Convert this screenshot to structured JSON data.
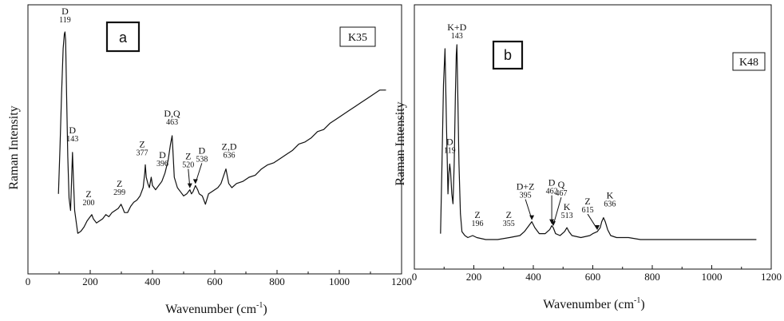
{
  "chart_data": [
    {
      "type": "line",
      "panel_label": "a",
      "sample": "K35",
      "xlabel": "Wavenumber (cm",
      "xlabel_sup": "-1",
      "xlabel_close": ")",
      "ylabel": "Raman Intensity",
      "xlim": [
        0,
        1200
      ],
      "ylim": [
        0,
        100
      ],
      "xticks": [
        "0",
        "200",
        "400",
        "600",
        "800",
        "1000",
        "1200"
      ],
      "grid": false,
      "series": [
        {
          "x": [
            98,
            103,
            108,
            113,
            117,
            119,
            121,
            124,
            128,
            132,
            137,
            140,
            143,
            146,
            150,
            160,
            170,
            180,
            190,
            200,
            205,
            210,
            220,
            230,
            240,
            250,
            260,
            270,
            280,
            290,
            299,
            305,
            310,
            320,
            330,
            340,
            350,
            360,
            370,
            375,
            377,
            380,
            385,
            390,
            396,
            400,
            410,
            420,
            430,
            440,
            450,
            458,
            463,
            466,
            470,
            480,
            490,
            500,
            510,
            520,
            525,
            530,
            538,
            545,
            550,
            560,
            570,
            580,
            590,
            600,
            610,
            620,
            636,
            645,
            655,
            670,
            690,
            710,
            730,
            750,
            770,
            790,
            810,
            830,
            850,
            870,
            890,
            910,
            930,
            950,
            970,
            990,
            1010,
            1030,
            1050,
            1070,
            1090,
            1110,
            1130,
            1150
          ],
          "y": [
            22,
            45,
            70,
            92,
            99,
            100,
            96,
            70,
            40,
            20,
            14,
            28,
            42,
            30,
            14,
            3,
            4,
            6,
            9,
            11,
            12,
            10,
            8,
            9,
            10,
            12,
            11,
            13,
            14,
            15,
            17,
            15,
            13,
            13,
            16,
            18,
            19,
            21,
            25,
            32,
            36,
            30,
            27,
            25,
            30,
            26,
            24,
            26,
            28,
            32,
            38,
            46,
            50,
            42,
            30,
            25,
            23,
            21,
            22,
            24,
            22,
            23,
            26,
            24,
            22,
            21,
            17,
            22,
            23,
            24,
            25,
            27,
            34,
            27,
            25,
            27,
            28,
            30,
            31,
            34,
            36,
            37,
            39,
            41,
            43,
            46,
            47,
            49,
            52,
            53,
            56,
            58,
            60,
            62,
            64,
            66,
            68,
            70,
            72,
            72
          ]
        }
      ],
      "annotations": [
        {
          "label": "D",
          "num": "119",
          "x": 119,
          "y": 100
        },
        {
          "label": "D",
          "num": "143",
          "x": 143,
          "y": 42
        },
        {
          "label": "Z",
          "num": "200",
          "x": 200,
          "y": 12
        },
        {
          "label": "Z",
          "num": "299",
          "x": 299,
          "y": 17
        },
        {
          "label": "Z",
          "num": "377",
          "x": 377,
          "y": 36
        },
        {
          "label": "D",
          "num": "396",
          "x": 396,
          "y": 30
        },
        {
          "label": "D,Q",
          "num": "463",
          "x": 463,
          "y": 50
        },
        {
          "label": "Z",
          "num": "520",
          "x": 520,
          "y": 24
        },
        {
          "label": "D",
          "num": "538",
          "x": 538,
          "y": 26
        },
        {
          "label": "Z,D",
          "num": "636",
          "x": 636,
          "y": 34
        }
      ]
    },
    {
      "type": "line",
      "panel_label": "b",
      "sample": "K48",
      "xlabel": "Wavenumber (cm",
      "xlabel_sup": "-1",
      "xlabel_close": ")",
      "ylabel": "Raman Intensity",
      "xlim": [
        0,
        1200
      ],
      "ylim": [
        0,
        100
      ],
      "xticks": [
        "0",
        "200",
        "400",
        "600",
        "800",
        "1000",
        "1200"
      ],
      "grid": false,
      "series": [
        {
          "x": [
            88,
            93,
            98,
            103,
            108,
            113,
            116,
            119,
            122,
            126,
            130,
            134,
            138,
            141,
            143,
            146,
            150,
            155,
            160,
            170,
            180,
            196,
            210,
            240,
            280,
            320,
            355,
            370,
            385,
            395,
            405,
            420,
            440,
            455,
            462,
            467,
            475,
            490,
            505,
            513,
            520,
            530,
            560,
            590,
            600,
            615,
            625,
            630,
            636,
            642,
            650,
            660,
            680,
            720,
            760,
            800,
            850,
            900,
            950,
            1000,
            1050,
            1100,
            1150
          ],
          "y": [
            5,
            40,
            80,
            98,
            60,
            25,
            35,
            40,
            36,
            25,
            20,
            40,
            75,
            95,
            100,
            75,
            40,
            15,
            6,
            4,
            3,
            4,
            3,
            2,
            2,
            3,
            4,
            6,
            9,
            11,
            8,
            5,
            5,
            7,
            9,
            8,
            5,
            4,
            6,
            8,
            6,
            4,
            3,
            4,
            5,
            6,
            8,
            11,
            13,
            11,
            7,
            4,
            3,
            3,
            2,
            2,
            2,
            2,
            2,
            2,
            2,
            2,
            2
          ]
        }
      ],
      "annotations": [
        {
          "label": "K+D",
          "num": "143",
          "x": 143,
          "y": 100
        },
        {
          "label": "D",
          "num": "119",
          "x": 119,
          "y": 40
        },
        {
          "label": "Z",
          "num": "196",
          "x": 196,
          "y": 4
        },
        {
          "label": "Z",
          "num": "355",
          "x": 355,
          "y": 4
        },
        {
          "label": "D+Z",
          "num": "395",
          "x": 395,
          "y": 11
        },
        {
          "label": "D",
          "num": "462",
          "x": 462,
          "y": 9
        },
        {
          "label": "Q",
          "num": "467",
          "x": 467,
          "y": 8
        },
        {
          "label": "K",
          "num": "513",
          "x": 513,
          "y": 8
        },
        {
          "label": "Z",
          "num": "615",
          "x": 615,
          "y": 6
        },
        {
          "label": "K",
          "num": "636",
          "x": 636,
          "y": 13
        }
      ]
    }
  ]
}
